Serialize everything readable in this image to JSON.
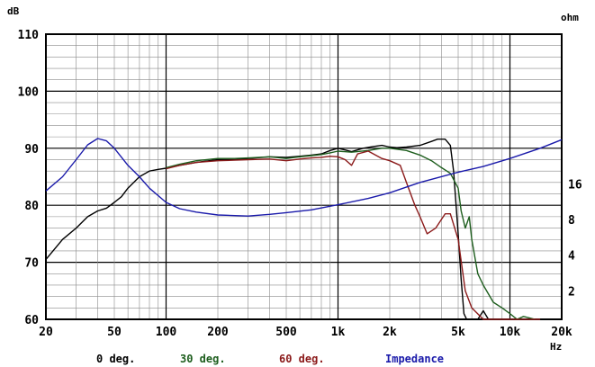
{
  "chart_data": {
    "type": "line",
    "left_axis": {
      "unit": "dB",
      "ylim": [
        60,
        110
      ],
      "ticks": [
        "60",
        "70",
        "80",
        "90",
        "100",
        "110"
      ]
    },
    "right_axis": {
      "unit": "ohm",
      "ticks": [
        "2",
        "4",
        "8",
        "16"
      ]
    },
    "x_axis": {
      "unit": "Hz",
      "scale": "log",
      "xlim": [
        20,
        20000
      ],
      "ticks": [
        "20",
        "50",
        "100",
        "200",
        "500",
        "1k",
        "2k",
        "5k",
        "10k",
        "20k"
      ]
    },
    "grid": true,
    "legend_placement": "bottom",
    "series": [
      {
        "name": "0 deg.",
        "color": "#000000",
        "axis": "left",
        "points": [
          [
            20,
            70.5
          ],
          [
            22,
            72
          ],
          [
            25,
            74
          ],
          [
            30,
            76
          ],
          [
            35,
            78
          ],
          [
            40,
            79
          ],
          [
            45,
            79.5
          ],
          [
            50,
            80.5
          ],
          [
            55,
            81.5
          ],
          [
            60,
            83
          ],
          [
            70,
            85
          ],
          [
            80,
            86
          ],
          [
            90,
            86.3
          ],
          [
            100,
            86.5
          ],
          [
            120,
            87
          ],
          [
            150,
            87.5
          ],
          [
            200,
            88
          ],
          [
            250,
            88
          ],
          [
            300,
            88.2
          ],
          [
            400,
            88.5
          ],
          [
            500,
            88.4
          ],
          [
            600,
            88.6
          ],
          [
            700,
            88.8
          ],
          [
            800,
            89
          ],
          [
            900,
            89.6
          ],
          [
            1000,
            90
          ],
          [
            1100,
            89.7
          ],
          [
            1200,
            89.4
          ],
          [
            1400,
            90
          ],
          [
            1600,
            90.3
          ],
          [
            1800,
            90.5
          ],
          [
            2000,
            90.2
          ],
          [
            2200,
            90.1
          ],
          [
            2500,
            90.2
          ],
          [
            3000,
            90.5
          ],
          [
            3500,
            91.2
          ],
          [
            3800,
            91.6
          ],
          [
            4200,
            91.6
          ],
          [
            4500,
            90.5
          ],
          [
            4700,
            86
          ],
          [
            5000,
            75
          ],
          [
            5200,
            67
          ],
          [
            5400,
            61
          ],
          [
            5600,
            60
          ],
          [
            6000,
            60
          ],
          [
            6500,
            60
          ],
          [
            7000,
            61.5
          ],
          [
            7500,
            60
          ],
          [
            8000,
            60
          ],
          [
            10000,
            60
          ]
        ]
      },
      {
        "name": "30 deg.",
        "color": "#1e5e1e",
        "axis": "left",
        "points": [
          [
            100,
            86.6
          ],
          [
            120,
            87.2
          ],
          [
            150,
            87.8
          ],
          [
            200,
            88.2
          ],
          [
            250,
            88.2
          ],
          [
            300,
            88.3
          ],
          [
            400,
            88.5
          ],
          [
            500,
            88.2
          ],
          [
            600,
            88.5
          ],
          [
            700,
            88.7
          ],
          [
            800,
            88.9
          ],
          [
            900,
            89.2
          ],
          [
            1000,
            89.5
          ],
          [
            1200,
            89.3
          ],
          [
            1500,
            89.6
          ],
          [
            1800,
            90
          ],
          [
            2000,
            90
          ],
          [
            2500,
            89.6
          ],
          [
            3000,
            88.8
          ],
          [
            3500,
            87.8
          ],
          [
            4000,
            86.6
          ],
          [
            4500,
            85.6
          ],
          [
            5000,
            83
          ],
          [
            5200,
            79
          ],
          [
            5500,
            76
          ],
          [
            5800,
            78
          ],
          [
            6000,
            74
          ],
          [
            6500,
            68
          ],
          [
            7000,
            66
          ],
          [
            8000,
            63
          ],
          [
            9000,
            62
          ],
          [
            10000,
            61
          ],
          [
            11000,
            60
          ],
          [
            12000,
            60.5
          ],
          [
            14000,
            60
          ]
        ]
      },
      {
        "name": "60 deg.",
        "color": "#8b1a1a",
        "axis": "left",
        "points": [
          [
            100,
            86.4
          ],
          [
            120,
            87
          ],
          [
            150,
            87.5
          ],
          [
            200,
            87.8
          ],
          [
            250,
            87.9
          ],
          [
            300,
            88
          ],
          [
            400,
            88.1
          ],
          [
            500,
            87.8
          ],
          [
            600,
            88.1
          ],
          [
            700,
            88.3
          ],
          [
            800,
            88.4
          ],
          [
            900,
            88.6
          ],
          [
            1000,
            88.5
          ],
          [
            1100,
            88
          ],
          [
            1200,
            87
          ],
          [
            1300,
            89
          ],
          [
            1500,
            89.5
          ],
          [
            1800,
            88.2
          ],
          [
            2000,
            87.8
          ],
          [
            2300,
            87
          ],
          [
            2500,
            84
          ],
          [
            2800,
            80
          ],
          [
            3000,
            78
          ],
          [
            3300,
            75
          ],
          [
            3700,
            76
          ],
          [
            4200,
            78.5
          ],
          [
            4500,
            78.5
          ],
          [
            5000,
            74
          ],
          [
            5500,
            65
          ],
          [
            6000,
            62
          ],
          [
            7000,
            60
          ],
          [
            10000,
            60
          ],
          [
            15000,
            60
          ]
        ]
      },
      {
        "name": "Impedance",
        "color": "#1a1aaa",
        "axis": "right",
        "points": [
          [
            20,
            82.5
          ],
          [
            25,
            85
          ],
          [
            30,
            88
          ],
          [
            35,
            90.6
          ],
          [
            40,
            91.7
          ],
          [
            45,
            91.3
          ],
          [
            50,
            90
          ],
          [
            60,
            87
          ],
          [
            70,
            85
          ],
          [
            80,
            83
          ],
          [
            100,
            80.5
          ],
          [
            120,
            79.4
          ],
          [
            150,
            78.8
          ],
          [
            200,
            78.3
          ],
          [
            300,
            78.1
          ],
          [
            400,
            78.4
          ],
          [
            500,
            78.7
          ],
          [
            700,
            79.2
          ],
          [
            1000,
            80.1
          ],
          [
            1500,
            81.2
          ],
          [
            2000,
            82.2
          ],
          [
            3000,
            84
          ],
          [
            5000,
            85.8
          ],
          [
            7000,
            86.8
          ],
          [
            10000,
            88.2
          ],
          [
            15000,
            90
          ],
          [
            20000,
            91.5
          ]
        ]
      }
    ]
  }
}
